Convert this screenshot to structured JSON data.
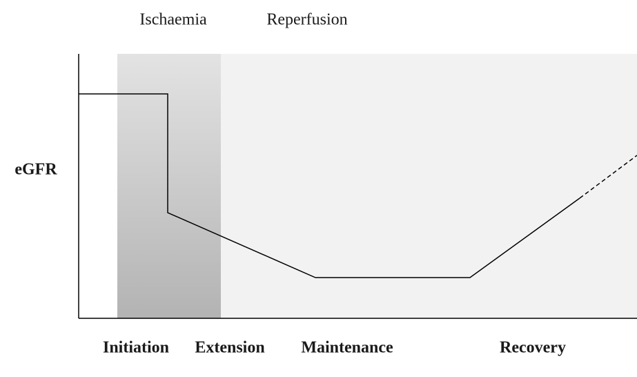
{
  "top_labels": [
    "Ischaemia",
    "Reperfusion"
  ],
  "y_axis_label": "eGFR",
  "phases": [
    "Initiation",
    "Extension",
    "Maintenance",
    "Recovery"
  ]
}
